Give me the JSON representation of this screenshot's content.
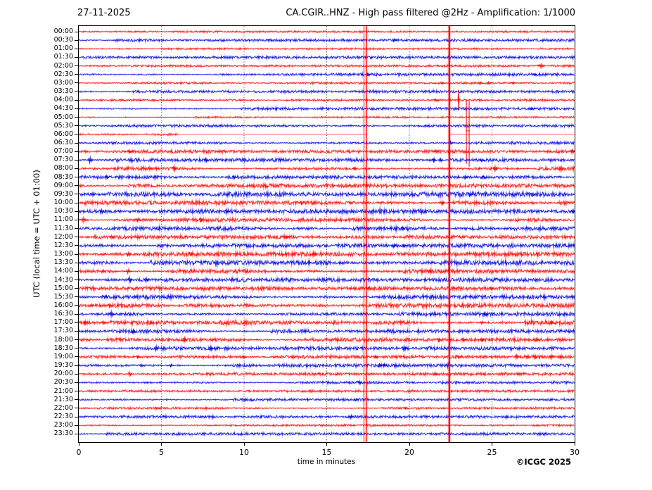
{
  "chart_data": {
    "type": "helicorder",
    "date": "27-11-2025",
    "station_title": "CA.CGIR..HNZ - High pass filtered @2Hz - Amplification: 1/1000",
    "xlabel": "time in minutes",
    "ylabel": "UTC (local time = UTC + 01:00)",
    "credit": "©ICGC 2025",
    "x_ticks": [
      0,
      5,
      10,
      15,
      20,
      25,
      30
    ],
    "x_range": [
      0,
      30
    ],
    "minutes_per_line": 30,
    "grid": "dotted-vertical-every-5-min",
    "legend_position": "none",
    "colors": {
      "red": "#ff0000",
      "blue": "#0000e0",
      "grid": "#3c3c3c",
      "axis": "#000000",
      "background": "#ffffff"
    },
    "rows": [
      {
        "label": "00:00",
        "color": "r",
        "amp": 0.7,
        "events": []
      },
      {
        "label": "00:30",
        "color": "b",
        "amp": 1.0,
        "events": [
          [
            19.1,
            2
          ]
        ]
      },
      {
        "label": "01:00",
        "color": "r",
        "amp": 0.7,
        "events": []
      },
      {
        "label": "01:30",
        "color": "b",
        "amp": 1.0,
        "events": []
      },
      {
        "label": "02:00",
        "color": "r",
        "amp": 0.8,
        "events": [
          [
            28.0,
            3
          ]
        ]
      },
      {
        "label": "02:30",
        "color": "b",
        "amp": 1.0,
        "events": [
          [
            17.5,
            1.5
          ],
          [
            27.6,
            1.5
          ]
        ]
      },
      {
        "label": "03:00",
        "color": "r",
        "amp": 0.8,
        "events": [
          [
            22.0,
            1.5
          ],
          [
            24.3,
            2
          ],
          [
            24.8,
            1.8
          ],
          [
            26.3,
            1.5
          ]
        ]
      },
      {
        "label": "03:30",
        "color": "b",
        "amp": 1.0,
        "events": []
      },
      {
        "label": "04:00",
        "color": "r",
        "amp": 0.8,
        "events": [
          [
            21.6,
            1.8
          ],
          [
            22.98,
            14
          ]
        ]
      },
      {
        "label": "04:30",
        "color": "b",
        "amp": 1.0,
        "events": [
          [
            27.4,
            1.6
          ]
        ]
      },
      {
        "label": "05:00",
        "color": "r",
        "amp": 0.7,
        "events": []
      },
      {
        "label": "05:30",
        "color": "b",
        "amp": 1.0,
        "events": []
      },
      {
        "label": "06:00",
        "color": "r",
        "amp": 1.2,
        "events": [],
        "special": {
          "noise_until": 6.0,
          "gap": [
            17.42,
            22.42
          ],
          "spikes": [
            {
              "min": 23.45,
              "up": 48,
              "down": 42
            },
            {
              "min": 23.62,
              "up": 48,
              "down": 46
            }
          ],
          "notch_offset": -5
        }
      },
      {
        "label": "06:30",
        "color": "b",
        "amp": 1.0,
        "events": [
          [
            22.5,
            2.5
          ]
        ]
      },
      {
        "label": "07:00",
        "color": "r",
        "amp": 1.3,
        "events": [
          [
            3.1,
            2
          ],
          [
            21.6,
            2
          ],
          [
            29.9,
            2.5
          ]
        ]
      },
      {
        "label": "07:30",
        "color": "b",
        "amp": 1.3,
        "events": [
          [
            0.7,
            4
          ],
          [
            7.7,
            2.5
          ],
          [
            21.5,
            3
          ],
          [
            21.9,
            2.5
          ],
          [
            24.4,
            2
          ]
        ]
      },
      {
        "label": "08:00",
        "color": "r",
        "amp": 1.3,
        "events": [
          [
            5.8,
            3.5
          ],
          [
            16.7,
            2
          ],
          [
            25.2,
            3.5
          ],
          [
            29.2,
            3.5
          ]
        ]
      },
      {
        "label": "08:30",
        "color": "b",
        "amp": 1.2,
        "events": [
          [
            1.7,
            2.5
          ],
          [
            9.4,
            2.5
          ],
          [
            23.4,
            2.5
          ],
          [
            24.5,
            2
          ]
        ]
      },
      {
        "label": "09:00",
        "color": "r",
        "amp": 1.5,
        "events": []
      },
      {
        "label": "09:30",
        "color": "b",
        "amp": 1.8,
        "events": [
          [
            23.7,
            2
          ],
          [
            27.5,
            2
          ]
        ]
      },
      {
        "label": "10:00",
        "color": "r",
        "amp": 1.5,
        "events": [
          [
            13.5,
            2
          ],
          [
            22.0,
            3
          ]
        ]
      },
      {
        "label": "10:30",
        "color": "b",
        "amp": 1.6,
        "events": [
          [
            1.4,
            3
          ],
          [
            29.9,
            2.5
          ]
        ]
      },
      {
        "label": "11:00",
        "color": "r",
        "amp": 1.5,
        "events": [
          [
            0.3,
            3.5
          ],
          [
            3.6,
            2.5
          ],
          [
            7.4,
            3
          ]
        ]
      },
      {
        "label": "11:30",
        "color": "b",
        "amp": 1.5,
        "events": [
          [
            19.6,
            2.5
          ]
        ]
      },
      {
        "label": "12:00",
        "color": "r",
        "amp": 1.4,
        "events": [
          [
            2.0,
            2.5
          ],
          [
            12.6,
            2
          ]
        ]
      },
      {
        "label": "12:30",
        "color": "b",
        "amp": 1.5,
        "events": [
          [
            19.1,
            2.5
          ],
          [
            19.7,
            2
          ]
        ]
      },
      {
        "label": "13:00",
        "color": "r",
        "amp": 1.6,
        "events": [
          [
            3.0,
            2.5
          ],
          [
            6.8,
            2
          ],
          [
            14.3,
            2.5
          ]
        ]
      },
      {
        "label": "13:30",
        "color": "b",
        "amp": 1.8,
        "events": []
      },
      {
        "label": "14:00",
        "color": "r",
        "amp": 1.6,
        "events": [
          [
            1.5,
            2
          ],
          [
            3.0,
            3
          ],
          [
            21.2,
            2
          ]
        ]
      },
      {
        "label": "14:30",
        "color": "b",
        "amp": 1.5,
        "events": [
          [
            3.1,
            4
          ],
          [
            4.1,
            3
          ]
        ]
      },
      {
        "label": "15:00",
        "color": "r",
        "amp": 1.4,
        "events": [
          [
            17.6,
            2.5
          ],
          [
            25.0,
            2
          ]
        ]
      },
      {
        "label": "15:30",
        "color": "b",
        "amp": 1.5,
        "events": [
          [
            1.6,
            2
          ],
          [
            3.4,
            2
          ]
        ]
      },
      {
        "label": "16:00",
        "color": "r",
        "amp": 1.7,
        "events": [
          [
            0.8,
            2
          ],
          [
            1.9,
            2
          ]
        ]
      },
      {
        "label": "16:30",
        "color": "b",
        "amp": 1.5,
        "events": [
          [
            2.0,
            4
          ],
          [
            24.6,
            2.5
          ]
        ]
      },
      {
        "label": "17:00",
        "color": "r",
        "amp": 1.8,
        "events": [
          [
            0.4,
            3
          ],
          [
            1.5,
            2.5
          ],
          [
            4.4,
            2
          ],
          [
            24.4,
            2
          ],
          [
            28.6,
            2
          ]
        ]
      },
      {
        "label": "17:30",
        "color": "b",
        "amp": 1.4,
        "events": [
          [
            3.3,
            2.5
          ]
        ]
      },
      {
        "label": "18:00",
        "color": "r",
        "amp": 1.5,
        "events": [
          [
            6.4,
            3
          ],
          [
            21.8,
            2.5
          ],
          [
            23.3,
            2.5
          ],
          [
            24.4,
            2
          ],
          [
            27.7,
            2.5
          ]
        ]
      },
      {
        "label": "18:30",
        "color": "b",
        "amp": 1.4,
        "events": [
          [
            4.7,
            3.5
          ],
          [
            8.0,
            3
          ],
          [
            19.7,
            3.5
          ]
        ]
      },
      {
        "label": "19:00",
        "color": "r",
        "amp": 1.2,
        "events": [
          [
            3.6,
            2
          ],
          [
            10.0,
            2
          ],
          [
            18.0,
            2
          ],
          [
            23.0,
            2
          ],
          [
            26.5,
            3
          ],
          [
            27.2,
            2.5
          ],
          [
            27.6,
            2.5
          ],
          [
            28.6,
            3
          ],
          [
            29.2,
            3
          ]
        ]
      },
      {
        "label": "19:30",
        "color": "b",
        "amp": 1.2,
        "events": [
          [
            3.8,
            2
          ],
          [
            5.6,
            2
          ],
          [
            18.2,
            2.5
          ],
          [
            18.5,
            2.5
          ],
          [
            22.35,
            3.5
          ]
        ]
      },
      {
        "label": "20:00",
        "color": "r",
        "amp": 1.1,
        "events": [
          [
            3.1,
            3
          ],
          [
            21.6,
            2
          ]
        ]
      },
      {
        "label": "20:30",
        "color": "b",
        "amp": 1.0,
        "events": [
          [
            17.0,
            2.5
          ]
        ]
      },
      {
        "label": "21:00",
        "color": "r",
        "amp": 0.9,
        "events": []
      },
      {
        "label": "21:30",
        "color": "b",
        "amp": 1.0,
        "events": [
          [
            16.8,
            1.5
          ]
        ]
      },
      {
        "label": "22:00",
        "color": "r",
        "amp": 0.8,
        "events": [
          [
            19.8,
            1.5
          ]
        ]
      },
      {
        "label": "22:30",
        "color": "b",
        "amp": 1.0,
        "events": [
          [
            16.5,
            2.5
          ]
        ]
      },
      {
        "label": "23:00",
        "color": "r",
        "amp": 0.7,
        "events": []
      },
      {
        "label": "23:30",
        "color": "b",
        "amp": 1.0,
        "events": []
      }
    ],
    "artifacts": {
      "halos": [
        {
          "min": 17.34,
          "w": 6,
          "color": "rgba(255,0,0,0.13)"
        },
        {
          "min": 22.42,
          "w": 5,
          "color": "rgba(255,0,0,0.14)"
        }
      ],
      "lines": [
        {
          "min": 17.25,
          "w": 1.0,
          "color": "rgba(255,0,0,0.75)"
        },
        {
          "min": 17.42,
          "w": 1.3,
          "color": "rgba(255,0,0,0.9)"
        },
        {
          "min": 22.42,
          "w": 2.4,
          "color": "rgba(255,0,0,1)"
        }
      ]
    }
  }
}
